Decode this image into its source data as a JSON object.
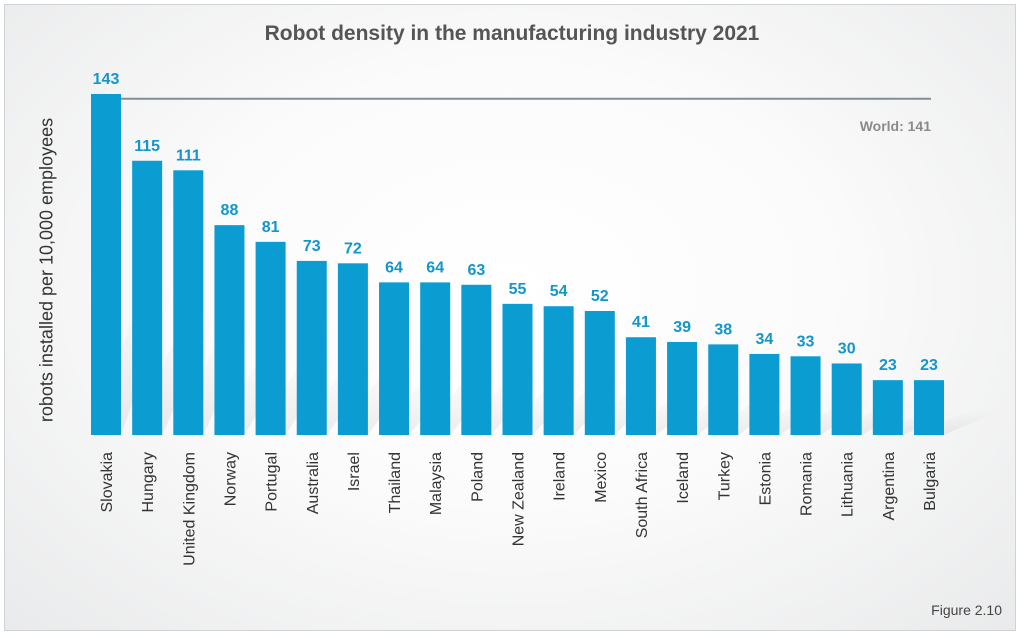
{
  "figure_caption": "Figure 2.10",
  "colors": {
    "bar": "#0b9cd1",
    "label": "#1296cc",
    "reference_line": "#7f8f99",
    "reference_text": "#8a8a8a"
  },
  "chart_data": {
    "type": "bar",
    "title": "Robot density in the manufacturing industry 2021",
    "xlabel": "",
    "ylabel": "robots installed per 10,000 employees",
    "categories": [
      "Slovakia",
      "Hungary",
      "United Kingdom",
      "Norway",
      "Portugal",
      "Australia",
      "Israel",
      "Thailand",
      "Malaysia",
      "Poland",
      "New Zealand",
      "Ireland",
      "Mexico",
      "South Africa",
      "Iceland",
      "Turkey",
      "Estonia",
      "Romania",
      "Lithuania",
      "Argentina",
      "Bulgaria"
    ],
    "values": [
      143,
      115,
      111,
      88,
      81,
      73,
      72,
      64,
      64,
      63,
      55,
      54,
      52,
      41,
      39,
      38,
      34,
      33,
      30,
      23,
      23
    ],
    "ylim": [
      0,
      143
    ],
    "grid": false,
    "reference_line": {
      "label": "World: 141",
      "value": 141
    }
  }
}
